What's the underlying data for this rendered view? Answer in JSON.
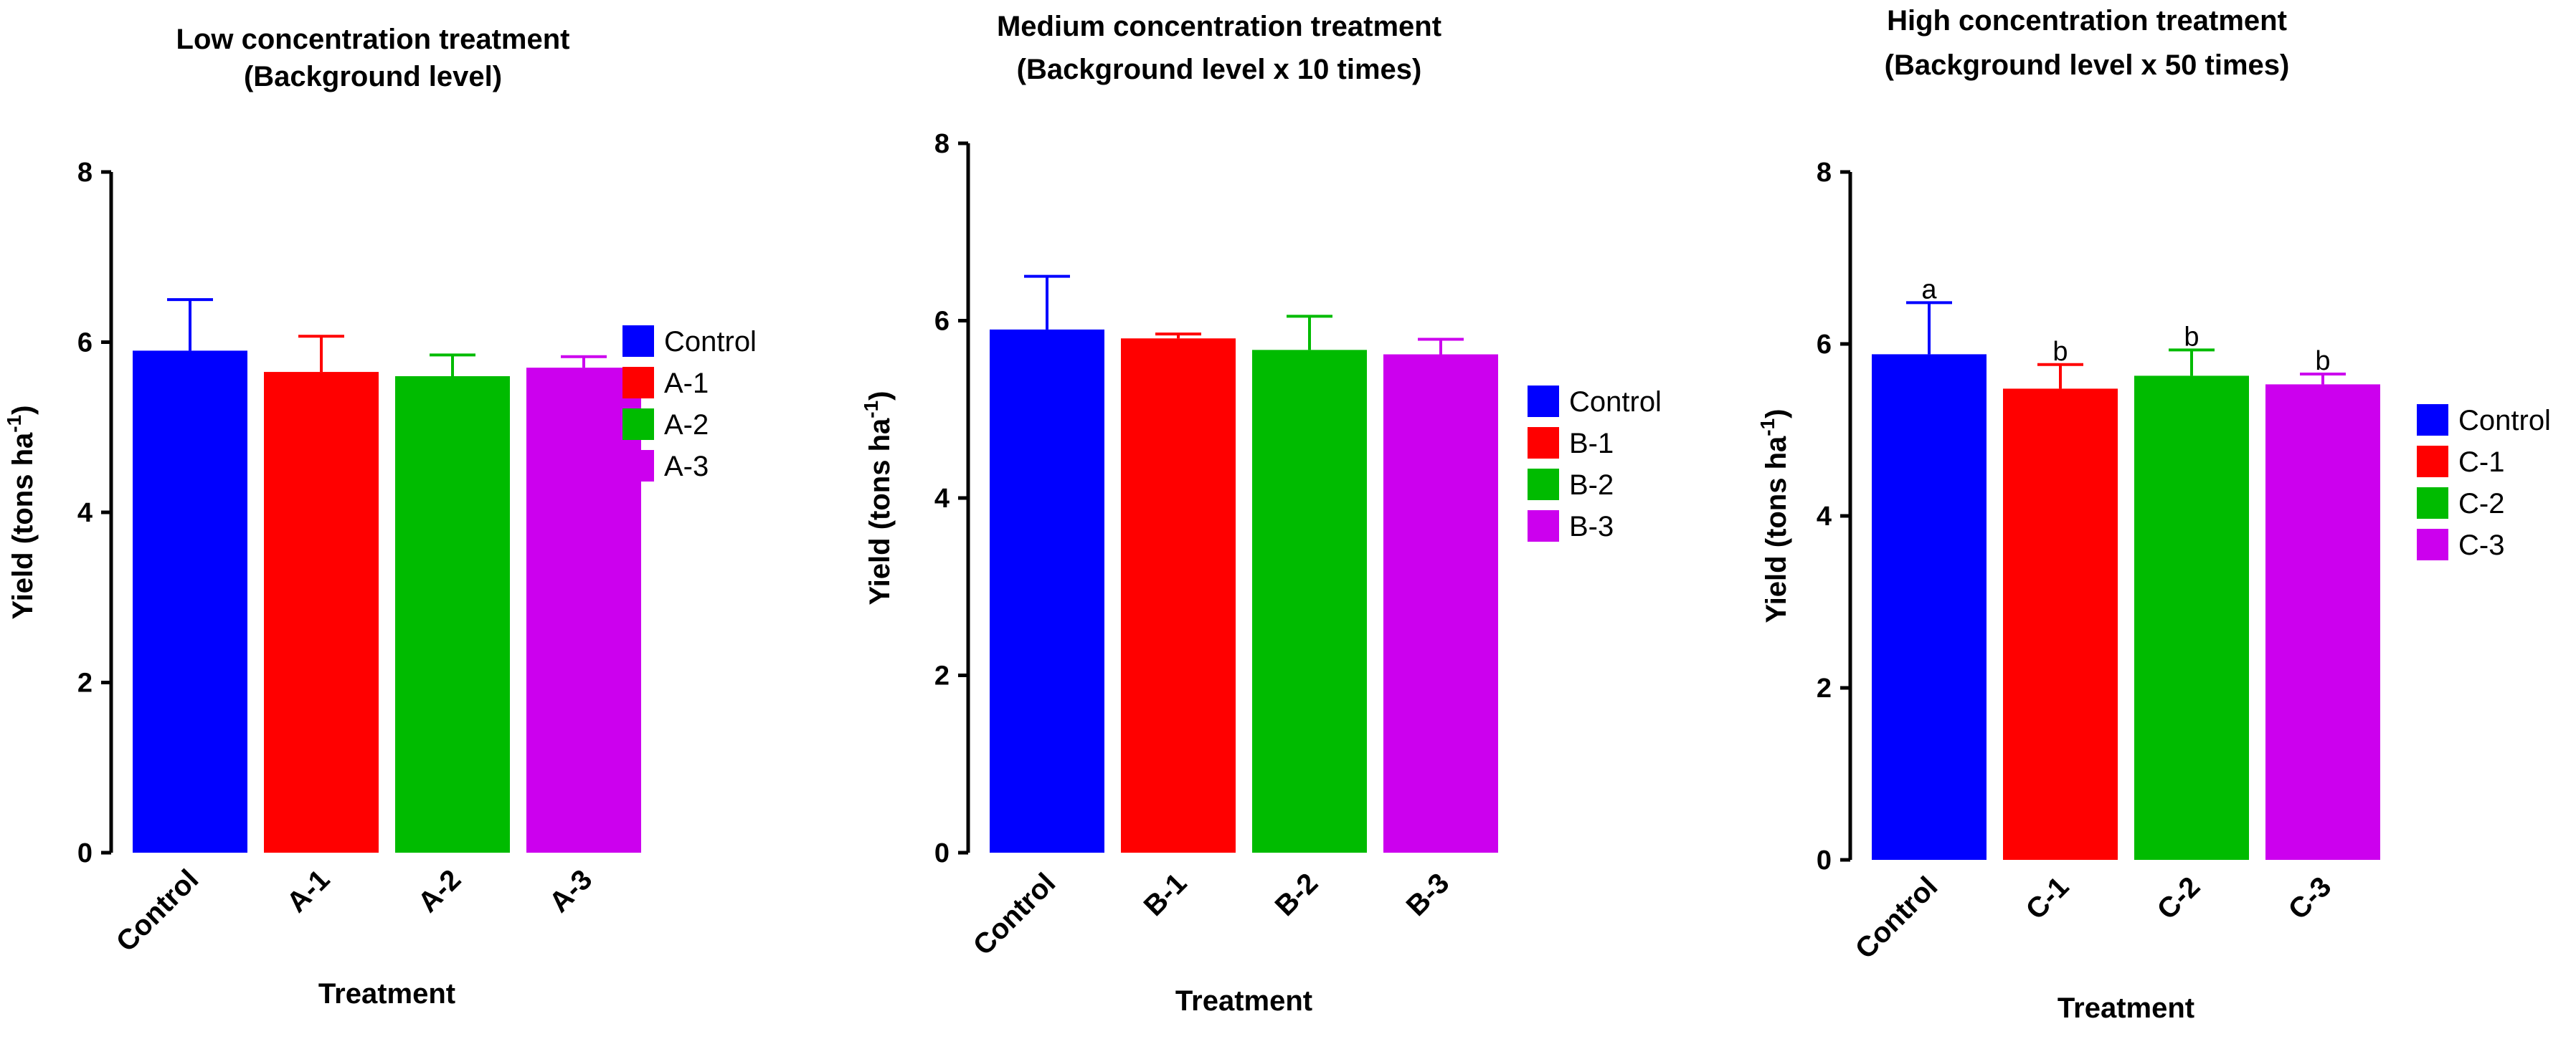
{
  "chart_data": [
    {
      "type": "bar",
      "title": [
        "Low concentration treatment",
        "(Background level)"
      ],
      "xlabel": "Treatment",
      "ylabel": "Yield (tons ha",
      "ylabel_superscript": "-1",
      "ylabel_suffix": ")",
      "ylim": [
        0,
        8
      ],
      "yticks": [
        "0",
        "2",
        "4",
        "6",
        "8"
      ],
      "categories": [
        "Control",
        "A-1",
        "A-2",
        "A-3"
      ],
      "values": [
        5.9,
        5.65,
        5.6,
        5.7
      ],
      "errors": [
        0.6,
        0.42,
        0.25,
        0.13
      ],
      "colors": [
        "#0000ff",
        "#ff0000",
        "#00bb00",
        "#cc00ee"
      ],
      "legend": [
        "Control",
        "A-1",
        "A-2",
        "A-3"
      ],
      "legend_position": "right",
      "significance": []
    },
    {
      "type": "bar",
      "title": [
        "Medium concentration treatment",
        "(Background level x 10 times)"
      ],
      "xlabel": "Treatment",
      "ylabel": "Yield (tons ha",
      "ylabel_superscript": "-1",
      "ylabel_suffix": ")",
      "ylim": [
        0,
        8
      ],
      "yticks": [
        "0",
        "2",
        "4",
        "6",
        "8"
      ],
      "categories": [
        "Control",
        "B-1",
        "B-2",
        "B-3"
      ],
      "values": [
        5.9,
        5.8,
        5.67,
        5.62
      ],
      "errors": [
        0.6,
        0.05,
        0.38,
        0.17
      ],
      "colors": [
        "#0000ff",
        "#ff0000",
        "#00bb00",
        "#cc00ee"
      ],
      "legend": [
        "Control",
        "B-1",
        "B-2",
        "B-3"
      ],
      "legend_position": "right",
      "significance": []
    },
    {
      "type": "bar",
      "title": [
        "High concentration treatment",
        "(Background level x 50 times)"
      ],
      "xlabel": "Treatment",
      "ylabel": "Yield (tons ha",
      "ylabel_superscript": "-1",
      "ylabel_suffix": ")",
      "ylim": [
        0,
        8
      ],
      "yticks": [
        "0",
        "2",
        "4",
        "6",
        "8"
      ],
      "categories": [
        "Control",
        "C-1",
        "C-2",
        "C-3"
      ],
      "values": [
        5.88,
        5.48,
        5.63,
        5.53
      ],
      "errors": [
        0.6,
        0.28,
        0.3,
        0.12
      ],
      "colors": [
        "#0000ff",
        "#ff0000",
        "#00bb00",
        "#cc00ee"
      ],
      "legend": [
        "Control",
        "C-1",
        "C-2",
        "C-3"
      ],
      "legend_position": "right",
      "significance": [
        "a",
        "b",
        "b",
        "b"
      ]
    }
  ]
}
